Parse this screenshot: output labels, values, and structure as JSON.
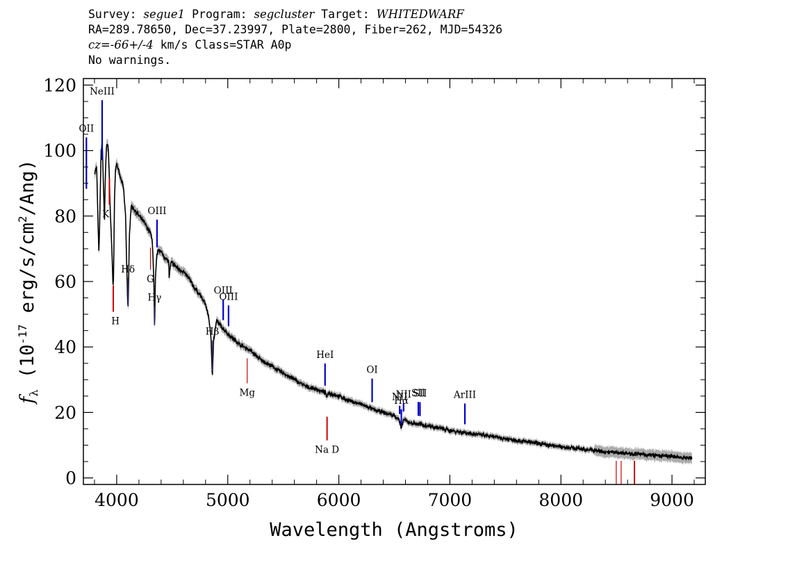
{
  "header": {
    "l1_survey_label": "Survey: ",
    "l1_survey": "segue1",
    "l1_program_label": " Program: ",
    "l1_program": "segcluster",
    "l1_target_label": " Target: ",
    "l1_target": "WHITEDWARF",
    "l2": "RA=289.78650, Dec=37.23997, Plate=2800, Fiber=262, MJD=54326",
    "l3_cz": "cz=-66+/-4",
    "l3_rest": " km/s Class=STAR A0p",
    "l4": "No warnings."
  },
  "chart_data": {
    "type": "line",
    "xlabel": "Wavelength (Angstroms)",
    "ylabel": "f_λ (10^-17 erg/s/cm^2/Ang)",
    "xlim": [
      3700,
      9300
    ],
    "ylim": [
      -2,
      122
    ],
    "x_ticks": [
      4000,
      5000,
      6000,
      7000,
      8000,
      9000
    ],
    "y_ticks": [
      0,
      20,
      40,
      60,
      80,
      100,
      120
    ],
    "series": [
      {
        "color": "#000000",
        "x": [
          3800,
          3820,
          3830,
          3840,
          3860,
          3870,
          3880,
          3890,
          3900,
          3910,
          3925,
          3935,
          3945,
          3955,
          3965,
          3970,
          3980,
          3990,
          4000,
          4030,
          4060,
          4080,
          4090,
          4102,
          4115,
          4130,
          4160,
          4200,
          4250,
          4300,
          4320,
          4335,
          4341,
          4348,
          4360,
          4380,
          4420,
          4470,
          4471,
          4490,
          4550,
          4600,
          4650,
          4700,
          4750,
          4800,
          4830,
          4850,
          4861,
          4872,
          4900,
          4950,
          5000,
          5100,
          5200,
          5300,
          5400,
          5500,
          5600,
          5700,
          5800,
          5880,
          5893,
          5905,
          6000,
          6100,
          6200,
          6300,
          6400,
          6500,
          6540,
          6563,
          6585,
          6620,
          6700,
          6800,
          7000,
          7200,
          7400,
          7600,
          7800,
          8000,
          8200,
          8400,
          8600,
          8800,
          9000,
          9100,
          9180
        ],
        "values": [
          93,
          95,
          80,
          68,
          100,
          102,
          90,
          79,
          95,
          102,
          101,
          90,
          78,
          72,
          60,
          58,
          85,
          95,
          96,
          92,
          89,
          80,
          65,
          50,
          75,
          83,
          82,
          80,
          78,
          75,
          73,
          60,
          44,
          60,
          68,
          70,
          68,
          66,
          61,
          66,
          64,
          63,
          61,
          58,
          56,
          53,
          49,
          42,
          31,
          42,
          48,
          46,
          44,
          41,
          39,
          36,
          34,
          32,
          30,
          28,
          27,
          26,
          24.5,
          26,
          25,
          23.5,
          22.5,
          21,
          20,
          19,
          18,
          15,
          18,
          17,
          16.5,
          16,
          14.5,
          13.5,
          12.5,
          11.5,
          10.5,
          9.5,
          8.8,
          8,
          7.5,
          7,
          6.5,
          6.2,
          6
        ]
      }
    ],
    "emission_lines": [
      {
        "label": "OII",
        "wave": 3727
      },
      {
        "label": "NeIII",
        "wave": 3869
      },
      {
        "label": "Hδ",
        "wave": 4102
      },
      {
        "label": "Hγ",
        "wave": 4341
      },
      {
        "label": "OIII",
        "wave": 4363
      },
      {
        "label": "Hβ",
        "wave": 4861
      },
      {
        "label": "OIII",
        "wave": 4959
      },
      {
        "label": "OIII",
        "wave": 5007
      },
      {
        "label": "HeI",
        "wave": 5876
      },
      {
        "label": "OI",
        "wave": 6300
      },
      {
        "label": "NII",
        "wave": 6548
      },
      {
        "label": "Hα",
        "wave": 6563
      },
      {
        "label": "NII",
        "wave": 6583
      },
      {
        "label": "SII",
        "wave": 6716
      },
      {
        "label": "SII",
        "wave": 6731
      },
      {
        "label": "ArIII",
        "wave": 7135
      }
    ],
    "absorption_lines": [
      {
        "label": "K",
        "wave": 3934
      },
      {
        "label": "H",
        "wave": 3969
      },
      {
        "label": "G",
        "wave": 4304
      },
      {
        "label": "Mg",
        "wave": 5175
      },
      {
        "label": "Na D",
        "wave": 5894
      },
      {
        "label": "",
        "wave": 8498
      },
      {
        "label": "",
        "wave": 8542
      },
      {
        "label": "",
        "wave": 8662
      }
    ],
    "colors": {
      "emission": "#0000cc",
      "absorption": "#cc0000",
      "spectrum": "#000000",
      "error_band": "#aaaaaa"
    }
  }
}
